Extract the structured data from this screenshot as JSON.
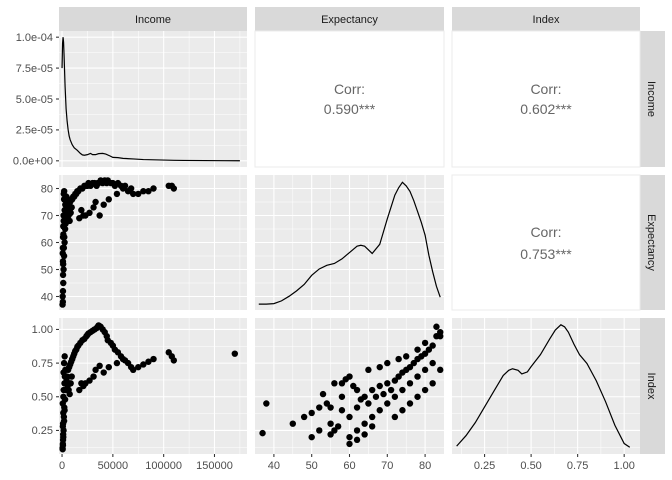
{
  "chart_data": {
    "type": "scatter",
    "variables": [
      "Income",
      "Expectancy",
      "Index"
    ],
    "strips": {
      "top": [
        "Income",
        "Expectancy",
        "Index"
      ],
      "right": [
        "Income",
        "Expectancy",
        "Index"
      ]
    },
    "corr_label": "Corr:",
    "correlations": [
      {
        "row": 0,
        "col": 1,
        "value": "0.590***"
      },
      {
        "row": 0,
        "col": 2,
        "value": "0.602***"
      },
      {
        "row": 1,
        "col": 2,
        "value": "0.753***"
      }
    ],
    "axes": {
      "income_x": {
        "lim": [
          -3000,
          182000
        ],
        "ticks": [
          0,
          50000,
          100000,
          150000
        ],
        "tick_labels": [
          "0",
          "50000",
          "100000",
          "150000"
        ]
      },
      "expectancy_x": {
        "lim": [
          35,
          85
        ],
        "ticks": [
          40,
          50,
          60,
          70,
          80
        ],
        "tick_labels": [
          "40",
          "50",
          "60",
          "70",
          "80"
        ]
      },
      "index_x": {
        "lim": [
          0.075,
          1.085
        ],
        "ticks": [
          0.25,
          0.5,
          0.75,
          1.0
        ],
        "tick_labels": [
          "0.25",
          "0.50",
          "0.75",
          "1.00"
        ]
      },
      "density_y": {
        "lim": [
          -5e-06,
          0.000105
        ],
        "ticks": [
          0,
          2.5e-05,
          5e-05,
          7.5e-05,
          0.0001
        ],
        "tick_labels": [
          "0.0e+00",
          "2.5e-05",
          "5.0e-05",
          "7.5e-05",
          "1.0e-04"
        ]
      },
      "expectancy_y": {
        "lim": [
          35,
          85
        ],
        "ticks": [
          40,
          50,
          60,
          70,
          80
        ],
        "tick_labels": [
          "40",
          "50",
          "60",
          "70",
          "80"
        ]
      },
      "index_y": {
        "lim": [
          0.075,
          1.085
        ],
        "ticks": [
          0.25,
          0.5,
          0.75,
          1.0
        ],
        "tick_labels": [
          "0.25",
          "0.50",
          "0.75",
          "1.00"
        ]
      }
    },
    "income_density": {
      "x": [
        0,
        500,
        1000,
        1500,
        2000,
        3000,
        4000,
        5000,
        6000,
        7000,
        8000,
        10000,
        12000,
        15000,
        18000,
        20000,
        22000,
        25000,
        28000,
        30000,
        33000,
        36000,
        40000,
        43000,
        47000,
        50000,
        55000,
        60000,
        70000,
        80000,
        90000,
        100000,
        110000,
        120000,
        140000,
        160000,
        175000
      ],
      "y": [
        7.5e-05,
        9.5e-05,
        0.0001,
        9.6e-05,
        8.5e-05,
        6e-05,
        4.2e-05,
        3.2e-05,
        2.5e-05,
        2e-05,
        1.7e-05,
        1.3e-05,
        1.05e-05,
        8.5e-06,
        6e-06,
        4.8e-06,
        4.5e-06,
        5e-06,
        6e-06,
        5e-06,
        5e-06,
        5.8e-06,
        6e-06,
        5.5e-06,
        4e-06,
        2.8e-06,
        2.6e-06,
        2e-06,
        1.5e-06,
        1e-06,
        8e-07,
        6e-07,
        4e-07,
        3e-07,
        2e-07,
        1e-07,
        5e-08
      ]
    },
    "expectancy_density": {
      "x": [
        36,
        38,
        40,
        42,
        44,
        46,
        48,
        50,
        52,
        54,
        56,
        58,
        60,
        62,
        63,
        64,
        65,
        66,
        68,
        70,
        72,
        73,
        74,
        75,
        76,
        77,
        78,
        79,
        80,
        81,
        82,
        83,
        84
      ],
      "y": [
        0.0012,
        0.0012,
        0.0015,
        0.003,
        0.0055,
        0.0085,
        0.012,
        0.017,
        0.0205,
        0.0225,
        0.0235,
        0.026,
        0.0295,
        0.033,
        0.0335,
        0.033,
        0.031,
        0.029,
        0.034,
        0.048,
        0.061,
        0.065,
        0.068,
        0.066,
        0.063,
        0.058,
        0.052,
        0.046,
        0.039,
        0.028,
        0.019,
        0.011,
        0.005
      ]
    },
    "index_density": {
      "x": [
        0.1,
        0.15,
        0.2,
        0.25,
        0.3,
        0.35,
        0.38,
        0.4,
        0.43,
        0.45,
        0.48,
        0.5,
        0.55,
        0.6,
        0.63,
        0.66,
        0.68,
        0.7,
        0.73,
        0.76,
        0.8,
        0.85,
        0.9,
        0.95,
        1.0,
        1.03
      ],
      "y": [
        0.1,
        0.3,
        0.55,
        0.85,
        1.15,
        1.45,
        1.55,
        1.58,
        1.55,
        1.48,
        1.52,
        1.62,
        1.85,
        2.15,
        2.32,
        2.42,
        2.38,
        2.28,
        2.05,
        1.85,
        1.68,
        1.35,
        0.95,
        0.5,
        0.15,
        0.08
      ]
    },
    "density_ylim_expectancy": [
      -0.002,
      0.072
    ],
    "density_ylim_index": [
      -0.05,
      2.55
    ],
    "scatter_income_expectancy": {
      "x": [
        500,
        800,
        1200,
        1500,
        2000,
        2500,
        3000,
        1000,
        1800,
        2200,
        900,
        600,
        1100,
        3500,
        4000,
        5000,
        6000,
        7000,
        8000,
        9000,
        10000,
        11000,
        12000,
        13000,
        14000,
        15000,
        16000,
        18000,
        20000,
        22000,
        24000,
        25000,
        26000,
        28000,
        30000,
        32000,
        34000,
        35000,
        36000,
        38000,
        40000,
        42000,
        44000,
        45000,
        48000,
        50000,
        52000,
        55000,
        58000,
        60000,
        62000,
        65000,
        68000,
        70000,
        75000,
        80000,
        85000,
        90000,
        105000,
        108000,
        110000,
        700,
        1300,
        1600,
        2400,
        2800,
        3200,
        4500,
        5500,
        6500,
        7500,
        8500,
        9500,
        2000,
        1500,
        1000,
        1200,
        800,
        2600,
        3800,
        4200,
        1700,
        2100,
        900,
        19000,
        21000,
        27000,
        31000,
        33000,
        37000,
        41000,
        46000,
        54000,
        17000,
        23000
      ],
      "y": [
        37,
        38,
        45,
        50,
        55,
        60,
        65,
        48,
        58,
        62,
        42,
        40,
        52,
        67,
        69,
        71,
        72,
        74,
        75,
        76,
        76,
        77,
        77,
        78,
        78,
        79,
        79,
        80,
        80,
        81,
        81,
        81,
        82,
        81,
        82,
        82,
        81,
        82,
        82,
        83,
        82,
        83,
        82,
        83,
        82,
        82,
        81,
        82,
        81,
        80,
        81,
        79,
        80,
        78,
        78,
        79,
        79,
        80,
        81,
        81,
        80,
        56,
        63,
        68,
        70,
        72,
        74,
        75,
        74,
        70,
        68,
        71,
        73,
        76,
        70,
        62,
        66,
        58,
        72,
        76,
        77,
        78,
        79,
        53,
        72,
        70,
        71,
        73,
        75,
        70,
        74,
        76,
        78,
        69,
        70
      ]
    },
    "scatter_income_index": {
      "x": [
        500,
        800,
        1200,
        1500,
        2000,
        2500,
        3000,
        1000,
        1800,
        2200,
        900,
        600,
        1100,
        3500,
        4000,
        5000,
        6000,
        7000,
        8000,
        9000,
        10000,
        11000,
        12000,
        13000,
        14000,
        15000,
        16000,
        18000,
        20000,
        22000,
        24000,
        25000,
        26000,
        28000,
        30000,
        32000,
        34000,
        35000,
        36000,
        38000,
        40000,
        42000,
        44000,
        45000,
        48000,
        50000,
        52000,
        55000,
        58000,
        60000,
        62000,
        65000,
        68000,
        70000,
        75000,
        80000,
        85000,
        90000,
        105000,
        108000,
        110000,
        170000,
        700,
        1300,
        1600,
        2400,
        2800,
        3200,
        4500,
        5500,
        6500,
        7500,
        8500,
        9500,
        2000,
        1500,
        1000,
        1200,
        800,
        2600,
        19000,
        21000,
        27000,
        31000,
        33000,
        37000,
        41000,
        46000,
        54000,
        17000,
        23000
      ],
      "y": [
        0.12,
        0.15,
        0.2,
        0.25,
        0.32,
        0.4,
        0.48,
        0.18,
        0.35,
        0.42,
        0.14,
        0.11,
        0.22,
        0.55,
        0.6,
        0.65,
        0.7,
        0.72,
        0.74,
        0.76,
        0.78,
        0.8,
        0.82,
        0.84,
        0.85,
        0.87,
        0.88,
        0.9,
        0.92,
        0.93,
        0.95,
        0.96,
        0.97,
        0.98,
        0.99,
        1.0,
        1.01,
        1.02,
        1.03,
        1.02,
        1.0,
        0.98,
        0.95,
        0.92,
        0.9,
        0.88,
        0.85,
        0.83,
        0.8,
        0.78,
        0.77,
        0.75,
        0.72,
        0.7,
        0.72,
        0.74,
        0.76,
        0.78,
        0.83,
        0.8,
        0.77,
        0.82,
        0.45,
        0.5,
        0.55,
        0.6,
        0.65,
        0.7,
        0.62,
        0.58,
        0.55,
        0.52,
        0.6,
        0.65,
        0.75,
        0.68,
        0.3,
        0.38,
        0.28,
        0.8,
        0.6,
        0.58,
        0.62,
        0.65,
        0.7,
        0.73,
        0.68,
        0.72,
        0.75,
        0.55,
        0.6
      ]
    },
    "scatter_expectancy_index": {
      "x": [
        37,
        38,
        45,
        48,
        50,
        52,
        54,
        55,
        56,
        58,
        60,
        62,
        63,
        64,
        65,
        66,
        67,
        68,
        69,
        70,
        71,
        72,
        73,
        74,
        75,
        76,
        77,
        78,
        79,
        80,
        81,
        82,
        83,
        84,
        50,
        52,
        55,
        57,
        60,
        62,
        64,
        66,
        68,
        70,
        72,
        74,
        76,
        78,
        80,
        82,
        58,
        60,
        62,
        65,
        68,
        70,
        73,
        75,
        78,
        80,
        83,
        84,
        72,
        74,
        76,
        78,
        80,
        82,
        84,
        60,
        62,
        64,
        66,
        55,
        58,
        61,
        53,
        56,
        59
      ],
      "y": [
        0.23,
        0.45,
        0.3,
        0.35,
        0.38,
        0.42,
        0.45,
        0.3,
        0.25,
        0.4,
        0.35,
        0.42,
        0.48,
        0.5,
        0.45,
        0.55,
        0.5,
        0.58,
        0.52,
        0.6,
        0.55,
        0.62,
        0.65,
        0.68,
        0.7,
        0.72,
        0.75,
        0.78,
        0.8,
        0.82,
        0.85,
        0.88,
        0.95,
        0.98,
        0.2,
        0.25,
        0.22,
        0.28,
        0.2,
        0.25,
        0.3,
        0.35,
        0.4,
        0.45,
        0.5,
        0.55,
        0.6,
        0.65,
        0.7,
        0.75,
        0.6,
        0.65,
        0.55,
        0.7,
        0.72,
        0.75,
        0.78,
        0.8,
        0.85,
        0.9,
        1.02,
        0.95,
        0.35,
        0.4,
        0.45,
        0.5,
        0.55,
        0.6,
        0.7,
        0.15,
        0.18,
        0.22,
        0.28,
        0.42,
        0.5,
        0.58,
        0.52,
        0.6,
        0.63
      ]
    }
  }
}
